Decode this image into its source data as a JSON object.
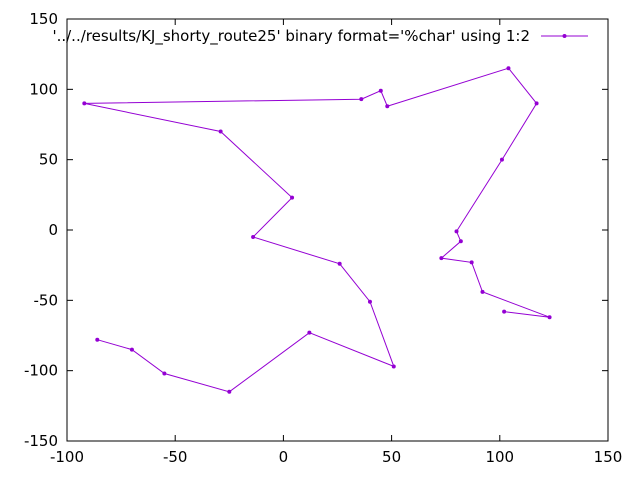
{
  "chart_data": {
    "type": "line",
    "series": [
      {
        "name": "'../../results/KJ_shorty_route25' binary format='%char' using 1:2",
        "color": "#9400d3",
        "x": [
          -86,
          -70,
          -55,
          -25,
          12,
          51,
          40,
          26,
          -14,
          4,
          -29,
          -92,
          36,
          45,
          48,
          104,
          117,
          101,
          80,
          82,
          73,
          87,
          92,
          123,
          102
        ],
        "y": [
          -78,
          -85,
          -102,
          -115,
          -73,
          -97,
          -51,
          -24,
          -5,
          23,
          70,
          90,
          93,
          99,
          88,
          115,
          90,
          50,
          -1,
          -8,
          -20,
          -23,
          -44,
          -62,
          -58
        ]
      }
    ],
    "xlim": [
      -100,
      150
    ],
    "ylim": [
      -150,
      150
    ],
    "xticks": [
      -100,
      -50,
      0,
      50,
      100,
      150
    ],
    "yticks": [
      -150,
      -100,
      -50,
      0,
      50,
      100,
      150
    ],
    "xlabel": "",
    "ylabel": "",
    "title": "",
    "grid": false,
    "legend": "top-right",
    "point_style": "dot"
  }
}
